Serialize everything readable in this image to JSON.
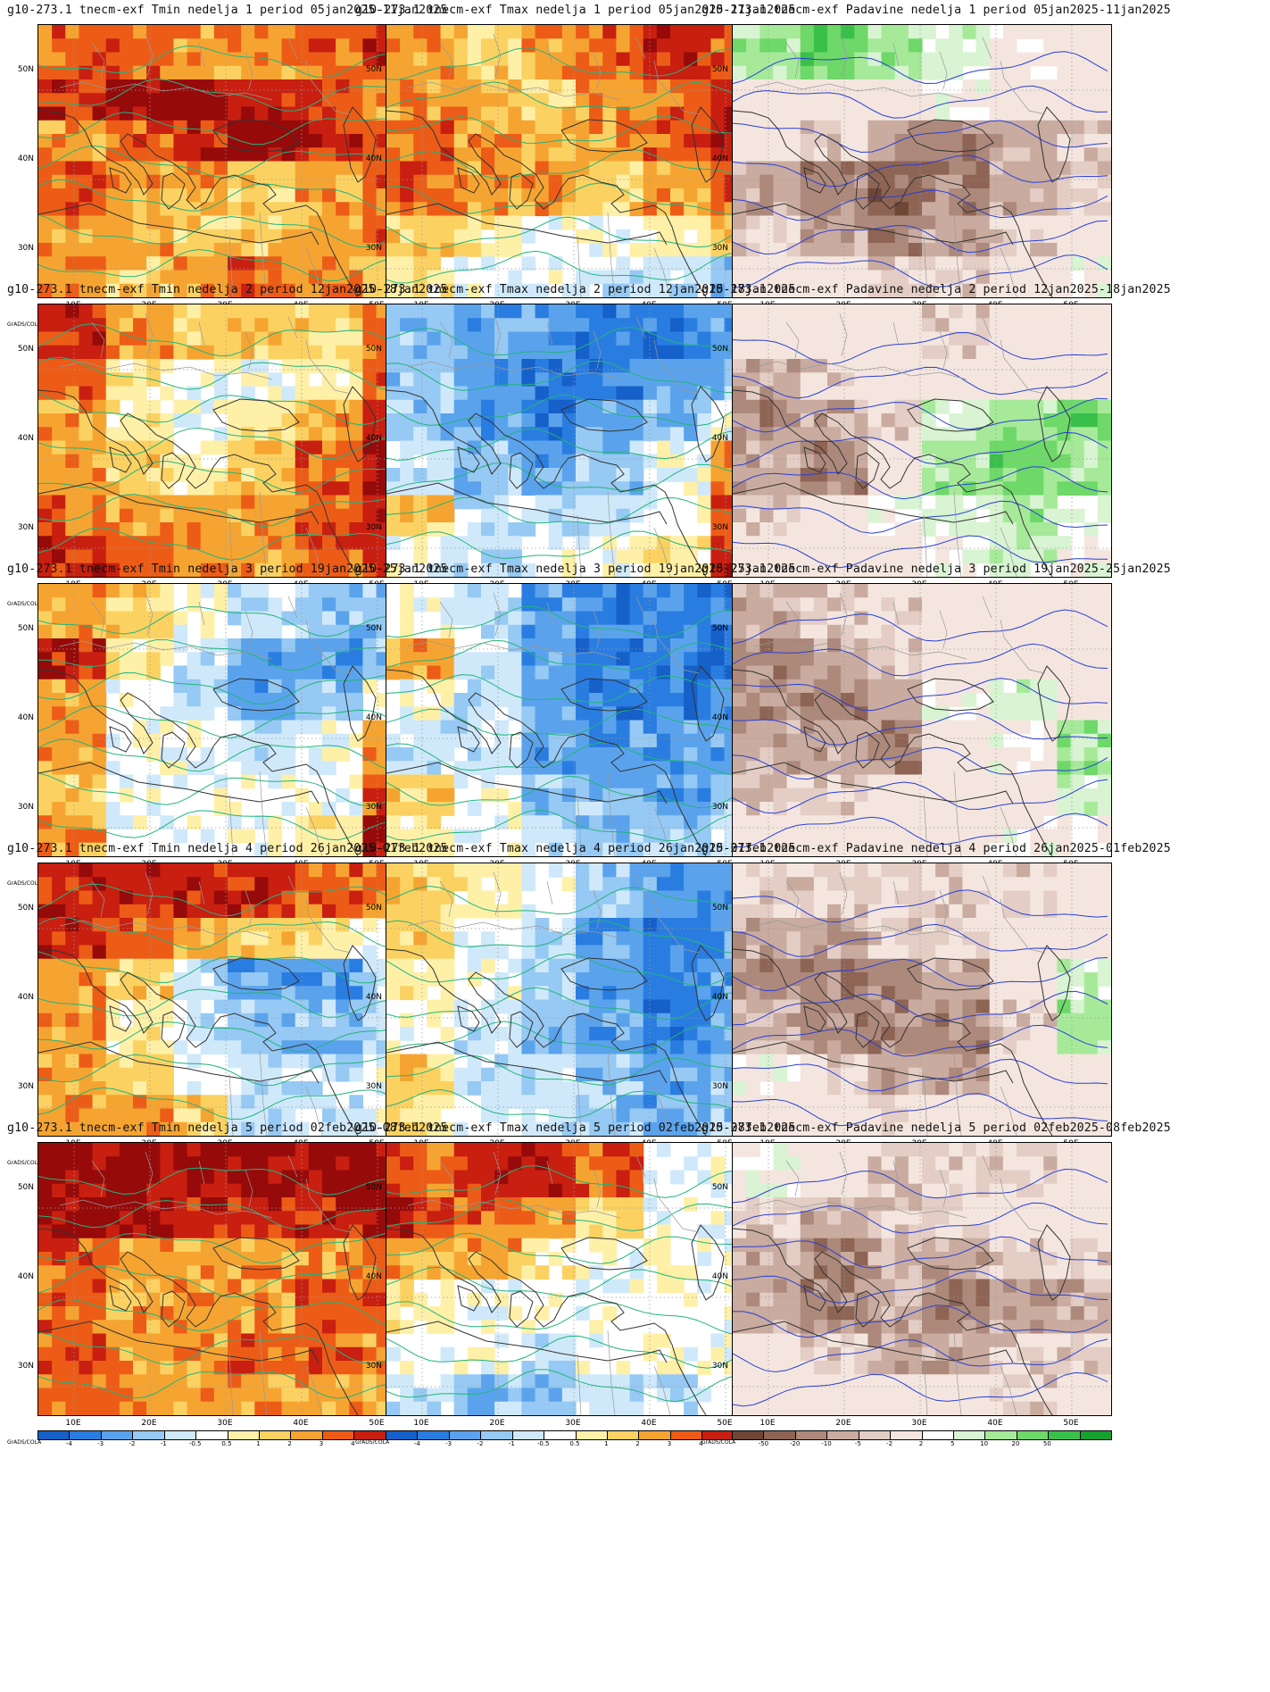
{
  "panels": [
    {
      "title": "g10-273.1 tnecm-exf Tmin nedelja 1 period 05jan2025-11jan2025",
      "var": "tmin",
      "pattern": [
        4,
        4,
        3,
        3,
        4,
        5,
        5,
        6,
        6,
        5,
        4,
        3,
        3,
        4,
        5,
        6,
        5,
        4,
        4,
        3,
        3,
        2,
        3,
        4,
        3,
        3,
        2,
        2,
        3,
        4,
        3,
        2,
        3,
        4,
        3,
        2
      ]
    },
    {
      "title": "g10-273.1 tnecm-exf Tmax nedelja 1 period 05jan2025-11jan2025",
      "var": "tmax",
      "pattern": [
        3,
        2,
        3,
        4,
        5,
        4,
        3,
        3,
        2,
        3,
        4,
        5,
        4,
        3,
        2,
        3,
        4,
        5,
        4,
        3,
        3,
        2,
        3,
        4,
        2,
        1,
        0,
        0,
        1,
        2,
        1,
        0,
        0,
        -1,
        -1,
        -2
      ]
    },
    {
      "title": "g10-273.1 tnecm-exf Padavine nedelja 1 period 05jan2025-11jan2025",
      "var": "pr",
      "pattern": [
        3,
        4,
        3,
        2,
        1,
        0,
        0,
        0,
        0,
        1,
        0,
        0,
        0,
        -1,
        -2,
        -3,
        -2,
        -1,
        -2,
        -3,
        -4,
        -3,
        -2,
        -1,
        -1,
        -2,
        -3,
        -2,
        -1,
        0,
        0,
        0,
        -1,
        -1,
        0,
        1
      ]
    },
    {
      "title": "g10-273.1 tnecm-exf Tmin nedelja 2 period 12jan2025-18jan2025",
      "var": "tmin",
      "pattern": [
        5,
        3,
        2,
        2,
        2,
        4,
        4,
        1,
        0,
        0,
        1,
        4,
        3,
        1,
        0,
        1,
        3,
        5,
        3,
        2,
        1,
        2,
        4,
        6,
        4,
        3,
        3,
        3,
        4,
        5,
        5,
        4,
        3,
        3,
        4,
        5
      ]
    },
    {
      "title": "g10-273.1 tnecm-exf Tmax nedelja 2 period 12jan2025-18jan2025",
      "var": "tmax",
      "pattern": [
        -2,
        -3,
        -3,
        -4,
        -4,
        -3,
        -2,
        -3,
        -4,
        -4,
        -3,
        -2,
        -2,
        -3,
        -4,
        -3,
        -2,
        0,
        -1,
        -2,
        -3,
        -2,
        0,
        3,
        2,
        -1,
        -1,
        -1,
        0,
        4,
        0,
        -1,
        0,
        0,
        1,
        5
      ]
    },
    {
      "title": "g10-273.1 tnecm-exf Padavine nedelja 2 period 12jan2025-18jan2025",
      "var": "pr",
      "pattern": [
        0,
        0,
        0,
        -1,
        0,
        0,
        -2,
        -1,
        0,
        0,
        0,
        0,
        -3,
        -2,
        -1,
        2,
        3,
        4,
        -2,
        -3,
        0,
        3,
        4,
        3,
        -1,
        0,
        1,
        2,
        3,
        2,
        0,
        0,
        0,
        1,
        2,
        1
      ]
    },
    {
      "title": "g10-273.1 tnecm-exf Tmin nedelja 3 period 19jan2025-25jan2025",
      "var": "tmin",
      "pattern": [
        3,
        2,
        0,
        -1,
        -2,
        -2,
        5,
        1,
        -1,
        -3,
        -3,
        -2,
        3,
        0,
        -1,
        -3,
        -2,
        0,
        3,
        0,
        0,
        -1,
        0,
        3,
        2,
        0,
        0,
        0,
        0,
        4,
        3,
        0,
        0,
        0,
        1,
        5
      ]
    },
    {
      "title": "g10-273.1 tnecm-exf Tmax nedelja 3 period 19jan2025-25jan2025",
      "var": "tmax",
      "pattern": [
        0,
        -1,
        -3,
        -4,
        -4,
        -4,
        3,
        -1,
        -3,
        -4,
        -4,
        -4,
        0,
        -1,
        -3,
        -4,
        -4,
        -3,
        -1,
        -1,
        -3,
        -3,
        -3,
        -3,
        2,
        0,
        -2,
        -2,
        -3,
        -2,
        1,
        0,
        -1,
        -2,
        -2,
        -1
      ]
    },
    {
      "title": "g10-273.1 tnecm-exf Padavine nedelja 3 period 19jan2025-25jan2025",
      "var": "pr",
      "pattern": [
        -2,
        -1,
        -1,
        0,
        0,
        0,
        -3,
        -2,
        -1,
        0,
        0,
        0,
        -3,
        -3,
        -2,
        1,
        2,
        0,
        -2,
        -2,
        -3,
        0,
        1,
        3,
        -1,
        -1,
        0,
        0,
        0,
        2,
        0,
        0,
        0,
        0,
        1,
        1
      ]
    },
    {
      "title": "g10-273.1 tnecm-exf Tmin nedelja 4 period 26jan2025-01feb2025",
      "var": "tmin",
      "pattern": [
        5,
        5,
        5,
        5,
        4,
        4,
        5,
        4,
        3,
        2,
        1,
        0,
        3,
        2,
        -1,
        -3,
        -3,
        -1,
        3,
        1,
        -1,
        -2,
        -2,
        -1,
        3,
        2,
        0,
        -1,
        -1,
        0,
        3,
        3,
        2,
        -1,
        -1,
        0
      ]
    },
    {
      "title": "g10-273.1 tnecm-exf Tmax nedelja 4 period 26jan2025-01feb2025",
      "var": "tmax",
      "pattern": [
        2,
        1,
        0,
        -2,
        -3,
        -3,
        2,
        0,
        -1,
        -3,
        -4,
        -3,
        1,
        0,
        -2,
        -3,
        -4,
        -3,
        0,
        -1,
        -2,
        -3,
        -4,
        -3,
        2,
        -1,
        -1,
        -2,
        -3,
        -2,
        1,
        0,
        -1,
        -2,
        -3,
        -2
      ]
    },
    {
      "title": "g10-273.1 tnecm-exf Padavine nedelja 4 period 26jan2025-01feb2025",
      "var": "pr",
      "pattern": [
        -1,
        -1,
        -1,
        -1,
        -1,
        0,
        -2,
        -2,
        -1,
        -1,
        0,
        0,
        -3,
        -3,
        -3,
        -2,
        0,
        2,
        -2,
        -3,
        -3,
        -3,
        -1,
        3,
        1,
        -1,
        -2,
        -2,
        0,
        0,
        0,
        0,
        -1,
        0,
        0,
        0
      ]
    },
    {
      "title": "g10-273.1 tnecm-exf Tmin nedelja 5 period 02feb2025-08feb2025",
      "var": "tmin",
      "pattern": [
        6,
        6,
        6,
        6,
        6,
        6,
        6,
        6,
        5,
        5,
        5,
        6,
        4,
        3,
        3,
        3,
        3,
        4,
        4,
        3,
        3,
        3,
        4,
        4,
        4,
        3,
        3,
        4,
        4,
        3,
        4,
        3,
        3,
        3,
        3,
        3
      ]
    },
    {
      "title": "g10-273.1 tnecm-exf Tmax nedelja 5 period 02feb2025-08feb2025",
      "var": "tmax",
      "pattern": [
        4,
        5,
        5,
        4,
        0,
        0,
        5,
        4,
        3,
        2,
        0,
        0,
        3,
        3,
        1,
        0,
        0,
        0,
        1,
        0,
        0,
        0,
        0,
        0,
        0,
        0,
        -1,
        0,
        0,
        0,
        -1,
        -2,
        -2,
        -1,
        -1,
        0
      ]
    },
    {
      "title": "g10-273.1 tnecm-exf Padavine nedelja 5 period 02feb2025-08feb2025",
      "var": "pr",
      "pattern": [
        1,
        0,
        -1,
        -1,
        -1,
        0,
        -1,
        -2,
        -1,
        -1,
        0,
        0,
        -2,
        -3,
        -2,
        -2,
        -1,
        -1,
        -2,
        -3,
        -2,
        -3,
        -2,
        -2,
        0,
        -1,
        -2,
        -2,
        -1,
        -1,
        0,
        0,
        0,
        0,
        -1,
        0
      ]
    }
  ],
  "axes": {
    "yticks": [
      "50N",
      "40N",
      "30N"
    ],
    "xticks": [
      "10E",
      "20E",
      "30E",
      "40E",
      "50E"
    ]
  },
  "colorbars": {
    "temp": {
      "labels": [
        "-4",
        "-3",
        "-2",
        "-1",
        "-0.5",
        "0.5",
        "1",
        "2",
        "3",
        "4"
      ],
      "colors": [
        "#1560c9",
        "#2a7de0",
        "#5aa3ec",
        "#96c9f3",
        "#cfe9fb",
        "#ffffff",
        "#fff0a8",
        "#fbd262",
        "#f6a431",
        "#ec5c17",
        "#c81f10",
        "#960a0a"
      ]
    },
    "precip": {
      "labels": [
        "-50",
        "-20",
        "-10",
        "-5",
        "-2",
        "2",
        "5",
        "10",
        "20",
        "50"
      ],
      "colors": [
        "#6e4636",
        "#8e6454",
        "#ad897b",
        "#c9ab9f",
        "#e3cdc4",
        "#f4e6df",
        "#ffffff",
        "#d8f4d2",
        "#a6ea99",
        "#6ed868",
        "#39c04a",
        "#16a22e"
      ]
    }
  },
  "credit": "GrADS/COLA",
  "contour_colors": {
    "temp": "#21b57c",
    "precip": "#2a3fd6"
  }
}
